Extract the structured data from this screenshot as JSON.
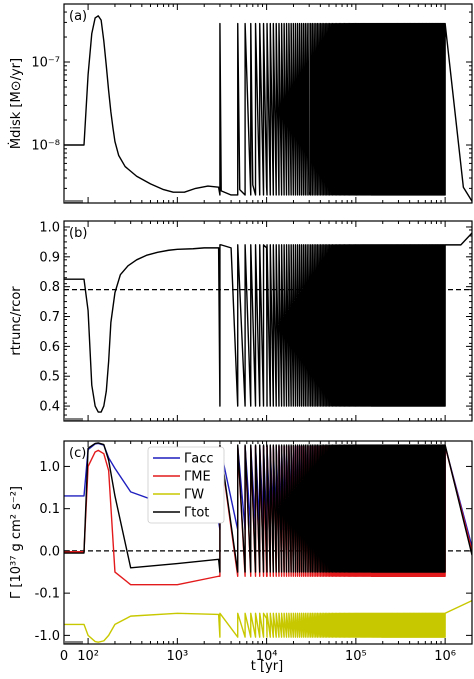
{
  "figure": {
    "x_label": "t [yr]",
    "x_tick_labels": [
      "0",
      "10²",
      "10³",
      "10⁴",
      "10⁵",
      "10⁶"
    ]
  },
  "panels": [
    {
      "tag": "(a)",
      "ylabel": "Ṁdisk [M⊙/yr]",
      "tick_labels": [
        "10⁻⁸",
        "10⁻⁷"
      ]
    },
    {
      "tag": "(b)",
      "ylabel": "rtrunc/rcor",
      "tick_labels": [
        "0.4",
        "0.5",
        "0.6",
        "0.7",
        "0.8",
        "0.9",
        "1.0"
      ]
    },
    {
      "tag": "(c)",
      "ylabel": "Γ [10³⁷ g cm² s⁻²]",
      "tick_labels": [
        "-1.0",
        "-0.1",
        "0.0",
        "0.1",
        "1.0"
      ]
    }
  ],
  "legend": [
    {
      "label": "Γacc",
      "color": "#1f1fbf"
    },
    {
      "label": "ΓME",
      "color": "#e31a1c"
    },
    {
      "label": "ΓW",
      "color": "#c8c800"
    },
    {
      "label": "Γtot",
      "color": "#000000"
    }
  ],
  "chart_data": [
    {
      "type": "line",
      "xscale": "symlog",
      "yscale": "log",
      "xlim": [
        0,
        2000000
      ],
      "ylim": [
        2e-09,
        5e-07
      ],
      "series": [
        {
          "color": "#000000",
          "x": [
            0,
            30,
            60,
            90,
            100,
            110,
            120,
            130,
            140,
            150,
            160,
            170,
            180,
            190,
            200,
            220,
            260,
            350,
            500,
            700,
            900,
            1200,
            1600,
            2200,
            2900,
            3000,
            3100,
            4000,
            5000,
            7000,
            10000,
            30000,
            100000,
            1000000,
            1600000,
            2000000
          ],
          "y": [
            1e-08,
            1e-08,
            1e-08,
            1e-08,
            7e-08,
            2.2e-07,
            3.4e-07,
            3.6e-07,
            3.2e-07,
            1.8e-07,
            9e-08,
            4.5e-08,
            2.5e-08,
            1.6e-08,
            1.1e-08,
            7.5e-09,
            5.5e-09,
            4.2e-09,
            3.4e-09,
            2.9e-09,
            2.7e-09,
            2.7e-09,
            3e-09,
            3.2e-09,
            3.1e-09,
            2.9e-07,
            2.8e-09,
            2.5e-09,
            2.9e-09,
            3.3e-09,
            3.1e-09,
            2.7e-09,
            2.6e-09,
            2.5e-09,
            3.1e-09,
            2.1e-09
          ],
          "oscillation": {
            "x_range": [
              3000,
              1000000
            ],
            "y_range": [
              2.5e-09,
              2.9e-07
            ]
          }
        }
      ]
    },
    {
      "type": "line",
      "xscale": "symlog",
      "ylim": [
        0.35,
        1.02
      ],
      "reference_line": {
        "y": 0.79,
        "style": "dashed"
      },
      "series": [
        {
          "color": "#000000",
          "x": [
            0,
            60,
            90,
            100,
            110,
            120,
            130,
            140,
            150,
            160,
            170,
            180,
            200,
            230,
            280,
            350,
            450,
            600,
            800,
            1000,
            1500,
            2000,
            2900,
            3000,
            3100,
            4000,
            10000,
            100000,
            1000000,
            1500000,
            2000000
          ],
          "y": [
            0.825,
            0.825,
            0.825,
            0.72,
            0.47,
            0.4,
            0.38,
            0.38,
            0.4,
            0.45,
            0.55,
            0.68,
            0.78,
            0.84,
            0.87,
            0.89,
            0.905,
            0.915,
            0.922,
            0.925,
            0.927,
            0.93,
            0.93,
            0.4,
            0.94,
            0.93,
            0.93,
            0.93,
            0.93,
            0.94,
            0.98
          ],
          "oscillation": {
            "x_range": [
              3000,
              1000000
            ],
            "y_range": [
              0.4,
              0.94
            ]
          }
        }
      ]
    },
    {
      "type": "line",
      "xscale": "symlog",
      "yscale": "symlog",
      "ylim": [
        -1.6,
        4
      ],
      "reference_line": {
        "y": 0,
        "style": "dashed"
      },
      "series": [
        {
          "name": "Γacc",
          "color": "#1f1fbf",
          "x": [
            0,
            90,
            100,
            120,
            130,
            150,
            170,
            200,
            300,
            1000,
            2900,
            10000,
            100000,
            1000000,
            2000000
          ],
          "y": [
            0.2,
            0.2,
            2.5,
            3.4,
            3.5,
            3.2,
            1.6,
            0.9,
            0.25,
            0.1,
            0.07,
            0.06,
            0.05,
            0.05,
            0.01
          ],
          "oscillation": {
            "x_range": [
              3000,
              1000000
            ],
            "y_range": [
              0.05,
              3.0
            ]
          }
        },
        {
          "name": "ΓME",
          "color": "#e31a1c",
          "x": [
            0,
            90,
            100,
            120,
            130,
            150,
            170,
            200,
            300,
            1000,
            2900,
            10000,
            100000,
            1000000,
            2000000
          ],
          "y": [
            -0.002,
            -0.002,
            1.0,
            2.2,
            2.4,
            2.0,
            0.8,
            -0.05,
            -0.08,
            -0.08,
            -0.06,
            -0.06,
            -0.05,
            -0.05,
            0
          ],
          "oscillation": {
            "x_range": [
              3000,
              1000000
            ],
            "y_range": [
              -0.06,
              3.0
            ]
          }
        },
        {
          "name": "ΓW",
          "color": "#c8c800",
          "x": [
            0,
            90,
            100,
            120,
            130,
            150,
            170,
            200,
            300,
            1000,
            2900,
            10000,
            100000,
            1000000,
            2000000
          ],
          "y": [
            -0.55,
            -0.55,
            -1.0,
            -1.4,
            -1.45,
            -1.35,
            -1.0,
            -0.55,
            -0.35,
            -0.3,
            -0.32,
            -0.4,
            -0.4,
            -0.35,
            -0.15
          ],
          "oscillation": {
            "x_range": [
              3000,
              1000000
            ],
            "y_range": [
              -1.1,
              -0.3
            ]
          }
        },
        {
          "name": "Γtot",
          "color": "#000000",
          "x": [
            0,
            90,
            100,
            120,
            130,
            150,
            170,
            200,
            300,
            1000,
            2900,
            10000,
            100000,
            1000000,
            2000000
          ],
          "y": [
            -0.005,
            -0.005,
            2.7,
            3.5,
            3.6,
            3.3,
            1.4,
            0.2,
            -0.04,
            -0.03,
            -0.02,
            -0.02,
            -0.01,
            -0.01,
            -0.01
          ],
          "oscillation": {
            "x_range": [
              3000,
              1000000
            ],
            "y_range": [
              -0.05,
              3.2
            ]
          }
        }
      ]
    }
  ]
}
